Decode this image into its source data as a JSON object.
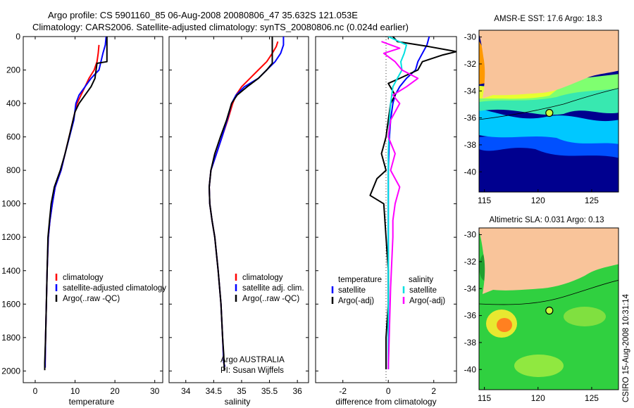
{
  "title_line1": "Argo profile: CS 5901160_85 06-Aug-2008 20080806_47 35.632S 121.053E",
  "title_line2": "Climatology: CARS2006. Satellite-adjusted climatology: synTS_20080806.nc (0.024d earlier)",
  "chart_data": [
    {
      "type": "line",
      "panel": "temperature",
      "xlabel": "temperature",
      "ylabel": "",
      "xlim": [
        -3,
        32
      ],
      "ylim": [
        0,
        2070
      ],
      "y_inverted": true,
      "xticks": [
        0,
        10,
        20,
        30
      ],
      "yticks": [
        0,
        200,
        400,
        600,
        800,
        1000,
        1200,
        1400,
        1600,
        1800,
        2000
      ],
      "legend": [
        "climatology",
        "satellite-adjusted climatology",
        "Argo(..raw -QC)"
      ],
      "legend_placement": "lower-right",
      "series": [
        {
          "name": "climatology",
          "color": "#ff0000",
          "x": [
            16.0,
            15.8,
            15.5,
            14.8,
            13.5,
            12.5,
            11.5,
            10.5,
            10.0,
            9.5,
            8.5,
            7.5,
            6.5,
            5.0,
            4.3,
            3.7,
            3.3,
            3.0,
            2.8,
            2.6,
            2.5,
            2.5
          ],
          "y": [
            50,
            100,
            150,
            200,
            250,
            300,
            350,
            400,
            450,
            500,
            600,
            700,
            800,
            900,
            1000,
            1100,
            1200,
            1400,
            1600,
            1800,
            1950,
            1980
          ]
        },
        {
          "name": "satellite-adjusted climatology",
          "color": "#0000ff",
          "x": [
            17.8,
            17.6,
            17.0,
            16.5,
            16.0,
            14.0,
            12.5,
            11.0,
            10.2,
            9.7,
            8.6,
            7.5,
            6.5,
            5.0,
            4.3,
            3.7,
            3.3,
            3.0,
            2.8,
            2.6,
            2.5,
            2.5
          ],
          "y": [
            0,
            50,
            100,
            150,
            200,
            250,
            300,
            350,
            400,
            500,
            600,
            700,
            800,
            900,
            1000,
            1100,
            1200,
            1400,
            1600,
            1800,
            1950,
            1980
          ]
        },
        {
          "name": "Argo(..raw -QC)",
          "color": "#000000",
          "x": [
            18.0,
            18.0,
            18.0,
            18.0,
            15.5,
            15.0,
            14.0,
            12.5,
            11.0,
            10.0,
            9.5,
            8.5,
            7.5,
            6.3,
            4.8,
            4.0,
            3.6,
            3.2,
            3.0,
            2.8,
            2.6,
            2.4,
            2.4
          ],
          "y": [
            0,
            60,
            120,
            150,
            160,
            250,
            300,
            350,
            400,
            450,
            500,
            600,
            700,
            800,
            900,
            1000,
            1100,
            1200,
            1400,
            1600,
            1800,
            1950,
            1995
          ]
        }
      ]
    },
    {
      "type": "line",
      "panel": "salinity",
      "xlabel": "salinity",
      "xlim": [
        33.7,
        36.2
      ],
      "ylim": [
        0,
        2070
      ],
      "y_inverted": true,
      "xticks": [
        34,
        34.5,
        35,
        35.5,
        36
      ],
      "legend": [
        "climatology",
        "satellite adj. clim.",
        "Argo(..raw -QC)"
      ],
      "legend_placement": "lower-right",
      "annotations": [
        "Argo AUSTRALIA",
        "PI: Susan Wijffels"
      ],
      "series": [
        {
          "name": "climatology",
          "color": "#ff0000",
          "x": [
            35.65,
            35.62,
            35.55,
            35.45,
            35.3,
            35.15,
            35.0,
            34.9,
            34.84,
            34.75,
            34.65,
            34.55,
            34.45,
            34.42,
            34.43,
            34.47,
            34.52,
            34.58,
            34.63,
            34.66,
            34.68,
            34.7
          ],
          "y": [
            30,
            60,
            100,
            150,
            200,
            250,
            300,
            350,
            400,
            500,
            600,
            700,
            800,
            900,
            1000,
            1100,
            1200,
            1400,
            1600,
            1800,
            1950,
            1975
          ]
        },
        {
          "name": "satellite adj. clim.",
          "color": "#0000ff",
          "x": [
            35.75,
            35.75,
            35.7,
            35.6,
            35.45,
            35.3,
            35.05,
            34.9,
            34.82,
            34.74,
            34.65,
            34.55,
            34.45,
            34.42,
            34.43,
            34.47,
            34.52,
            34.58,
            34.63,
            34.66,
            34.68,
            34.7
          ],
          "y": [
            0,
            50,
            100,
            150,
            200,
            250,
            300,
            350,
            400,
            500,
            600,
            700,
            800,
            900,
            1000,
            1100,
            1200,
            1400,
            1600,
            1800,
            1950,
            1975
          ]
        },
        {
          "name": "Argo(..raw -QC)",
          "color": "#000000",
          "x": [
            35.55,
            35.55,
            35.55,
            35.55,
            35.45,
            35.3,
            35.1,
            34.92,
            34.82,
            34.73,
            34.62,
            34.52,
            34.45,
            34.42,
            34.43,
            34.47,
            34.52,
            34.58,
            34.63,
            34.66,
            34.68,
            34.69,
            34.69
          ],
          "y": [
            0,
            60,
            120,
            160,
            200,
            250,
            300,
            350,
            400,
            500,
            600,
            700,
            800,
            900,
            1000,
            1100,
            1200,
            1400,
            1600,
            1800,
            1900,
            1990,
            2000
          ]
        }
      ]
    },
    {
      "type": "line",
      "panel": "difference",
      "xlabel": "difference from climatology",
      "xlim": [
        -3.2,
        3.0
      ],
      "ylim": [
        0,
        2070
      ],
      "y_inverted": true,
      "xticks": [
        -2,
        0,
        2
      ],
      "legend": [
        "temperature",
        "satellite",
        "Argo(-adj)",
        "salinity",
        "satellite",
        "Argo(-adj)"
      ],
      "legend_placement": "lower-center",
      "series": [
        {
          "name": "satellite",
          "group": "temperature",
          "color": "#0000ff",
          "x": [
            1.8,
            1.7,
            1.5,
            1.3,
            1.2,
            0.8,
            0.5,
            0.3,
            0.2,
            0.1,
            0.05,
            0.0,
            0.0,
            0.0,
            0.0
          ],
          "y": [
            0,
            50,
            100,
            150,
            200,
            250,
            300,
            350,
            400,
            500,
            600,
            800,
            1000,
            1500,
            1990
          ]
        },
        {
          "name": "Argo(-adj)",
          "group": "temperature",
          "color": "#000000",
          "x": [
            0.2,
            0.4,
            1.8,
            2.6,
            3.0,
            2.4,
            1.5,
            1.3,
            0.5,
            0.0,
            0.3,
            0.1,
            0.0,
            -0.1,
            -0.2,
            -0.3,
            -0.1,
            -0.5,
            -0.8,
            -0.2,
            -0.1,
            0.0,
            0.0,
            -0.1,
            -0.1
          ],
          "y": [
            0,
            30,
            60,
            80,
            90,
            110,
            150,
            200,
            250,
            280,
            350,
            400,
            500,
            600,
            650,
            700,
            800,
            850,
            950,
            1000,
            1200,
            1400,
            1600,
            1800,
            1990
          ]
        },
        {
          "name": "satellite",
          "group": "salinity",
          "color": "#00e0e0",
          "x": [
            0.0,
            0.8,
            0.7,
            0.55,
            0.6,
            0.4,
            0.2,
            0.1,
            0.05,
            0.0,
            0.0,
            0.0,
            0.0
          ],
          "y": [
            0,
            50,
            100,
            150,
            200,
            250,
            300,
            400,
            500,
            700,
            1000,
            1500,
            1990
          ]
        },
        {
          "name": "Argo(-adj)",
          "group": "salinity",
          "color": "#ff00ff",
          "x": [
            -0.3,
            0.5,
            -0.2,
            0.3,
            0.6,
            1.3,
            0.8,
            0.2,
            0.5,
            0.1,
            0.0,
            0.3,
            0.1,
            0.5,
            0.3,
            0.2,
            0.2,
            0.1,
            0.0
          ],
          "y": [
            30,
            70,
            100,
            150,
            200,
            250,
            300,
            350,
            400,
            500,
            600,
            700,
            800,
            900,
            1000,
            1100,
            1200,
            1500,
            1990
          ]
        }
      ]
    },
    {
      "type": "heatmap",
      "panel": "map-sst",
      "title": "AMSR-E SST: 17.6 Argo: 18.3",
      "xticks": [
        115,
        120,
        125
      ],
      "yticks": [
        -30,
        -32,
        -34,
        -36,
        -38,
        -40
      ],
      "xlim": [
        114.5,
        127.5
      ],
      "ylim": [
        -41.5,
        -29.5
      ],
      "profile_location": [
        121.053,
        -35.632
      ]
    },
    {
      "type": "heatmap",
      "panel": "map-sla",
      "title": "Altimetric SLA: 0.031 Argo: 0.13",
      "xticks": [
        115,
        120,
        125
      ],
      "yticks": [
        -30,
        -32,
        -34,
        -36,
        -38,
        -40
      ],
      "xlim": [
        114.5,
        127.5
      ],
      "ylim": [
        -41.5,
        -29.5
      ],
      "profile_location": [
        121.053,
        -35.632
      ]
    }
  ],
  "side_label": "CSIRO 15-Aug-2008 10:31:14"
}
